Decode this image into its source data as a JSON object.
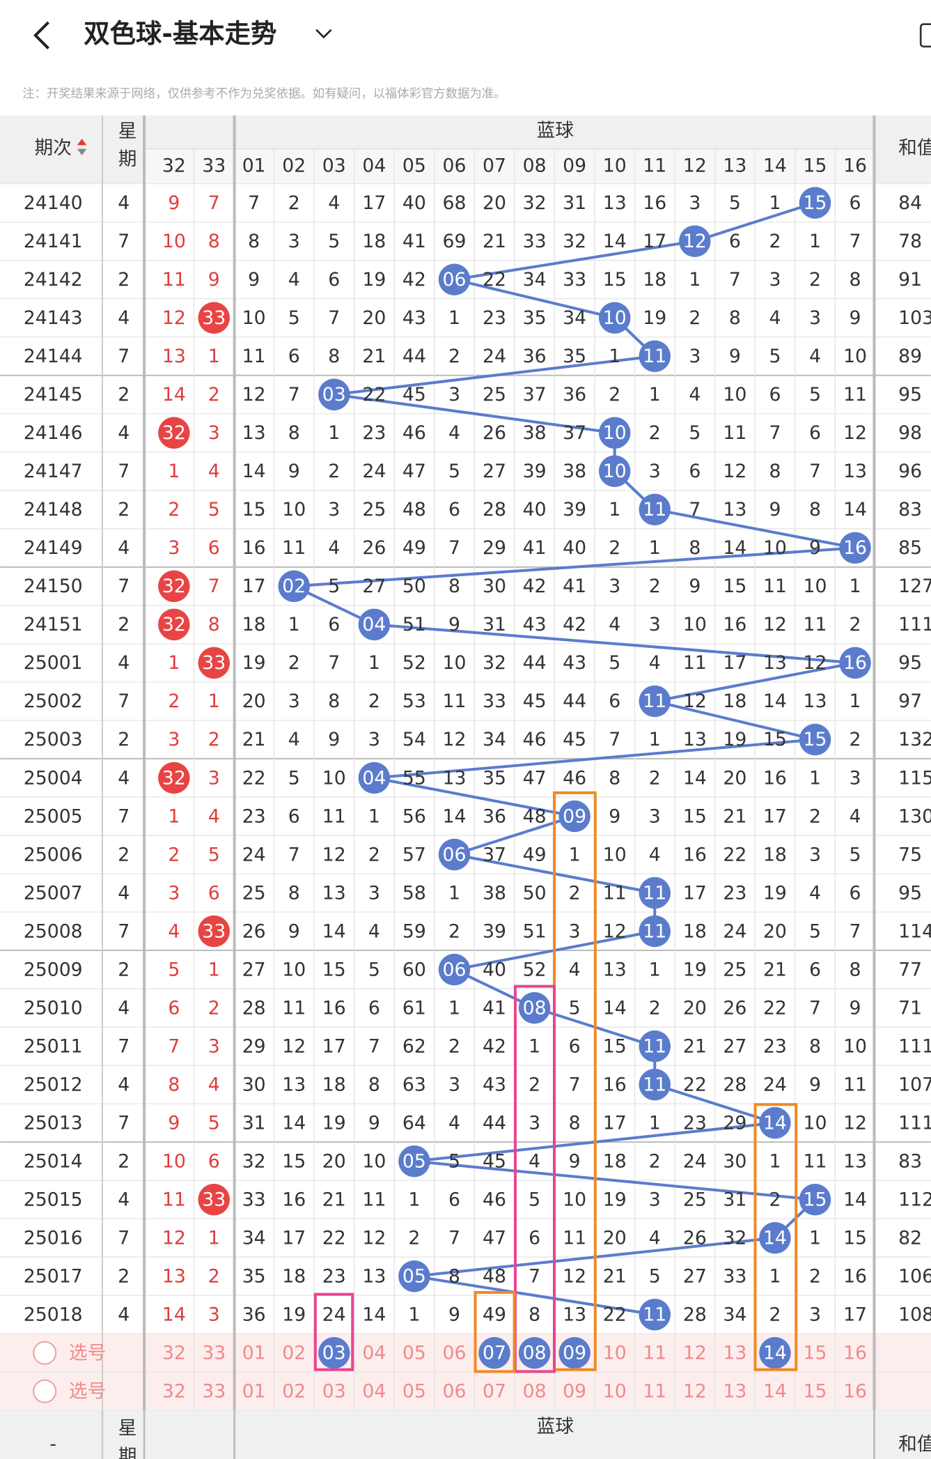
{
  "header": {
    "title": "双色球-基本走势",
    "note": "注：开奖结果来源于网络，仅供参考不作为兑奖依据。如有疑问，以福体彩官方数据为准。"
  },
  "table": {
    "col_period": "期次",
    "col_weekday": "星期",
    "red_cols": [
      "32",
      "33"
    ],
    "blue_group": "蓝球",
    "blue_cols": [
      "01",
      "02",
      "03",
      "04",
      "05",
      "06",
      "07",
      "08",
      "09",
      "10",
      "11",
      "12",
      "13",
      "14",
      "15",
      "16"
    ],
    "col_sum": "和值",
    "rows": [
      {
        "period": "24140",
        "weekday": "4",
        "red": [
          "9",
          "7"
        ],
        "blue": [
          "7",
          "2",
          "4",
          "17",
          "40",
          "68",
          "20",
          "32",
          "31",
          "13",
          "16",
          "3",
          "5",
          "1",
          {
            "text": "15",
            "ball": true
          },
          "6"
        ],
        "sum": "84"
      },
      {
        "period": "24141",
        "weekday": "7",
        "red": [
          "10",
          "8"
        ],
        "blue": [
          "8",
          "3",
          "5",
          "18",
          "41",
          "69",
          "21",
          "33",
          "32",
          "14",
          "17",
          {
            "text": "12",
            "ball": true
          },
          "6",
          "2",
          "1",
          "7"
        ],
        "sum": "78"
      },
      {
        "period": "24142",
        "weekday": "2",
        "red": [
          "11",
          "9"
        ],
        "blue": [
          "9",
          "4",
          "6",
          "19",
          "42",
          {
            "text": "06",
            "ball": true
          },
          "22",
          "34",
          "33",
          "15",
          "18",
          "1",
          "7",
          "3",
          "2",
          "8"
        ],
        "sum": "91"
      },
      {
        "period": "24143",
        "weekday": "4",
        "red": [
          "12",
          {
            "text": "33",
            "ball": true
          }
        ],
        "blue": [
          "10",
          "5",
          "7",
          "20",
          "43",
          "1",
          "23",
          "35",
          "34",
          {
            "text": "10",
            "ball": true
          },
          "19",
          "2",
          "8",
          "4",
          "3",
          "9"
        ],
        "sum": "103"
      },
      {
        "period": "24144",
        "weekday": "7",
        "red": [
          "13",
          "1"
        ],
        "blue": [
          "11",
          "6",
          "8",
          "21",
          "44",
          "2",
          "24",
          "36",
          "35",
          "1",
          {
            "text": "11",
            "ball": true
          },
          "3",
          "9",
          "5",
          "4",
          "10"
        ],
        "sum": "89"
      },
      {
        "period": "24145",
        "weekday": "2",
        "red": [
          "14",
          "2"
        ],
        "blue": [
          "12",
          "7",
          {
            "text": "03",
            "ball": true
          },
          "22",
          "45",
          "3",
          "25",
          "37",
          "36",
          "2",
          "1",
          "4",
          "10",
          "6",
          "5",
          "11"
        ],
        "sum": "95"
      },
      {
        "period": "24146",
        "weekday": "4",
        "red": [
          {
            "text": "32",
            "ball": true
          },
          "3"
        ],
        "blue": [
          "13",
          "8",
          "1",
          "23",
          "46",
          "4",
          "26",
          "38",
          "37",
          {
            "text": "10",
            "ball": true
          },
          "2",
          "5",
          "11",
          "7",
          "6",
          "12"
        ],
        "sum": "98"
      },
      {
        "period": "24147",
        "weekday": "7",
        "red": [
          "1",
          "4"
        ],
        "blue": [
          "14",
          "9",
          "2",
          "24",
          "47",
          "5",
          "27",
          "39",
          "38",
          {
            "text": "10",
            "ball": true
          },
          "3",
          "6",
          "12",
          "8",
          "7",
          "13"
        ],
        "sum": "96"
      },
      {
        "period": "24148",
        "weekday": "2",
        "red": [
          "2",
          "5"
        ],
        "blue": [
          "15",
          "10",
          "3",
          "25",
          "48",
          "6",
          "28",
          "40",
          "39",
          "1",
          {
            "text": "11",
            "ball": true
          },
          "7",
          "13",
          "9",
          "8",
          "14"
        ],
        "sum": "83"
      },
      {
        "period": "24149",
        "weekday": "4",
        "red": [
          "3",
          "6"
        ],
        "blue": [
          "16",
          "11",
          "4",
          "26",
          "49",
          "7",
          "29",
          "41",
          "40",
          "2",
          "1",
          "8",
          "14",
          "10",
          "9",
          {
            "text": "16",
            "ball": true
          }
        ],
        "sum": "85"
      },
      {
        "period": "24150",
        "weekday": "7",
        "red": [
          {
            "text": "32",
            "ball": true
          },
          "7"
        ],
        "blue": [
          "17",
          {
            "text": "02",
            "ball": true
          },
          "5",
          "27",
          "50",
          "8",
          "30",
          "42",
          "41",
          "3",
          "2",
          "9",
          "15",
          "11",
          "10",
          "1"
        ],
        "sum": "127"
      },
      {
        "period": "24151",
        "weekday": "2",
        "red": [
          {
            "text": "32",
            "ball": true
          },
          "8"
        ],
        "blue": [
          "18",
          "1",
          "6",
          {
            "text": "04",
            "ball": true
          },
          "51",
          "9",
          "31",
          "43",
          "42",
          "4",
          "3",
          "10",
          "16",
          "12",
          "11",
          "2"
        ],
        "sum": "111"
      },
      {
        "period": "25001",
        "weekday": "4",
        "red": [
          "1",
          {
            "text": "33",
            "ball": true
          }
        ],
        "blue": [
          "19",
          "2",
          "7",
          "1",
          "52",
          "10",
          "32",
          "44",
          "43",
          "5",
          "4",
          "11",
          "17",
          "13",
          "12",
          {
            "text": "16",
            "ball": true
          }
        ],
        "sum": "95"
      },
      {
        "period": "25002",
        "weekday": "7",
        "red": [
          "2",
          "1"
        ],
        "blue": [
          "20",
          "3",
          "8",
          "2",
          "53",
          "11",
          "33",
          "45",
          "44",
          "6",
          {
            "text": "11",
            "ball": true
          },
          "12",
          "18",
          "14",
          "13",
          "1"
        ],
        "sum": "97"
      },
      {
        "period": "25003",
        "weekday": "2",
        "red": [
          "3",
          "2"
        ],
        "blue": [
          "21",
          "4",
          "9",
          "3",
          "54",
          "12",
          "34",
          "46",
          "45",
          "7",
          "1",
          "13",
          "19",
          "15",
          {
            "text": "15",
            "ball": true
          },
          "2"
        ],
        "sum": "132"
      },
      {
        "period": "25004",
        "weekday": "4",
        "red": [
          {
            "text": "32",
            "ball": true
          },
          "3"
        ],
        "blue": [
          "22",
          "5",
          "10",
          {
            "text": "04",
            "ball": true
          },
          "55",
          "13",
          "35",
          "47",
          "46",
          "8",
          "2",
          "14",
          "20",
          "16",
          "1",
          "3"
        ],
        "sum": "115"
      },
      {
        "period": "25005",
        "weekday": "7",
        "red": [
          "1",
          "4"
        ],
        "blue": [
          "23",
          "6",
          "11",
          "1",
          "56",
          "14",
          "36",
          "48",
          {
            "text": "09",
            "ball": true
          },
          "9",
          "3",
          "15",
          "21",
          "17",
          "2",
          "4"
        ],
        "sum": "130"
      },
      {
        "period": "25006",
        "weekday": "2",
        "red": [
          "2",
          "5"
        ],
        "blue": [
          "24",
          "7",
          "12",
          "2",
          "57",
          {
            "text": "06",
            "ball": true
          },
          "37",
          "49",
          "1",
          "10",
          "4",
          "16",
          "22",
          "18",
          "3",
          "5"
        ],
        "sum": "75"
      },
      {
        "period": "25007",
        "weekday": "4",
        "red": [
          "3",
          "6"
        ],
        "blue": [
          "25",
          "8",
          "13",
          "3",
          "58",
          "1",
          "38",
          "50",
          "2",
          "11",
          {
            "text": "11",
            "ball": true
          },
          "17",
          "23",
          "19",
          "4",
          "6"
        ],
        "sum": "95"
      },
      {
        "period": "25008",
        "weekday": "7",
        "red": [
          "4",
          {
            "text": "33",
            "ball": true
          }
        ],
        "blue": [
          "26",
          "9",
          "14",
          "4",
          "59",
          "2",
          "39",
          "51",
          "3",
          "12",
          {
            "text": "11",
            "ball": true
          },
          "18",
          "24",
          "20",
          "5",
          "7"
        ],
        "sum": "114"
      },
      {
        "period": "25009",
        "weekday": "2",
        "red": [
          "5",
          "1"
        ],
        "blue": [
          "27",
          "10",
          "15",
          "5",
          "60",
          {
            "text": "06",
            "ball": true
          },
          "40",
          "52",
          "4",
          "13",
          "1",
          "19",
          "25",
          "21",
          "6",
          "8"
        ],
        "sum": "77"
      },
      {
        "period": "25010",
        "weekday": "4",
        "red": [
          "6",
          "2"
        ],
        "blue": [
          "28",
          "11",
          "16",
          "6",
          "61",
          "1",
          "41",
          {
            "text": "08",
            "ball": true
          },
          "5",
          "14",
          "2",
          "20",
          "26",
          "22",
          "7",
          "9"
        ],
        "sum": "71"
      },
      {
        "period": "25011",
        "weekday": "7",
        "red": [
          "7",
          "3"
        ],
        "blue": [
          "29",
          "12",
          "17",
          "7",
          "62",
          "2",
          "42",
          "1",
          "6",
          "15",
          {
            "text": "11",
            "ball": true
          },
          "21",
          "27",
          "23",
          "8",
          "10"
        ],
        "sum": "111"
      },
      {
        "period": "25012",
        "weekday": "4",
        "red": [
          "8",
          "4"
        ],
        "blue": [
          "30",
          "13",
          "18",
          "8",
          "63",
          "3",
          "43",
          "2",
          "7",
          "16",
          {
            "text": "11",
            "ball": true
          },
          "22",
          "28",
          "24",
          "9",
          "11"
        ],
        "sum": "107"
      },
      {
        "period": "25013",
        "weekday": "7",
        "red": [
          "9",
          "5"
        ],
        "blue": [
          "31",
          "14",
          "19",
          "9",
          "64",
          "4",
          "44",
          "3",
          "8",
          "17",
          "1",
          "23",
          "29",
          {
            "text": "14",
            "ball": true
          },
          "10",
          "12"
        ],
        "sum": "111"
      },
      {
        "period": "25014",
        "weekday": "2",
        "red": [
          "10",
          "6"
        ],
        "blue": [
          "32",
          "15",
          "20",
          "10",
          {
            "text": "05",
            "ball": true
          },
          "5",
          "45",
          "4",
          "9",
          "18",
          "2",
          "24",
          "30",
          "1",
          "11",
          "13"
        ],
        "sum": "83"
      },
      {
        "period": "25015",
        "weekday": "4",
        "red": [
          "11",
          {
            "text": "33",
            "ball": true
          }
        ],
        "blue": [
          "33",
          "16",
          "21",
          "11",
          "1",
          "6",
          "46",
          "5",
          "10",
          "19",
          "3",
          "25",
          "31",
          "2",
          {
            "text": "15",
            "ball": true
          },
          "14"
        ],
        "sum": "112"
      },
      {
        "period": "25016",
        "weekday": "7",
        "red": [
          "12",
          "1"
        ],
        "blue": [
          "34",
          "17",
          "22",
          "12",
          "2",
          "7",
          "47",
          "6",
          "11",
          "20",
          "4",
          "26",
          "32",
          {
            "text": "14",
            "ball": true
          },
          "1",
          "15"
        ],
        "sum": "82"
      },
      {
        "period": "25017",
        "weekday": "2",
        "red": [
          "13",
          "2"
        ],
        "blue": [
          "35",
          "18",
          "23",
          "13",
          {
            "text": "05",
            "ball": true
          },
          "8",
          "48",
          "7",
          "12",
          "21",
          "5",
          "27",
          "33",
          "1",
          "2",
          "16"
        ],
        "sum": "106"
      },
      {
        "period": "25018",
        "weekday": "4",
        "red": [
          "14",
          "3"
        ],
        "blue": [
          "36",
          "19",
          "24",
          "14",
          "1",
          "9",
          "49",
          "8",
          "13",
          "22",
          {
            "text": "11",
            "ball": true
          },
          "28",
          "34",
          "2",
          "3",
          "17"
        ],
        "sum": "108"
      }
    ],
    "select_rows": [
      {
        "label": "选号",
        "red": [
          "32",
          "33"
        ],
        "blue": [
          "01",
          "02",
          {
            "text": "03",
            "selected": true
          },
          "04",
          "05",
          "06",
          {
            "text": "07",
            "selected": true
          },
          {
            "text": "08",
            "selected": true
          },
          {
            "text": "09",
            "selected": true
          },
          "10",
          "11",
          "12",
          "13",
          {
            "text": "14",
            "selected": true
          },
          "15",
          "16"
        ]
      },
      {
        "label": "选号",
        "red": [
          "32",
          "33"
        ],
        "blue": [
          "01",
          "02",
          "03",
          "04",
          "05",
          "06",
          "07",
          "08",
          "09",
          "10",
          "11",
          "12",
          "13",
          "14",
          "15",
          "16"
        ]
      }
    ],
    "footer": {
      "period": "-",
      "weekday": "星期",
      "blue_group": "蓝球",
      "sum": "和值"
    }
  }
}
